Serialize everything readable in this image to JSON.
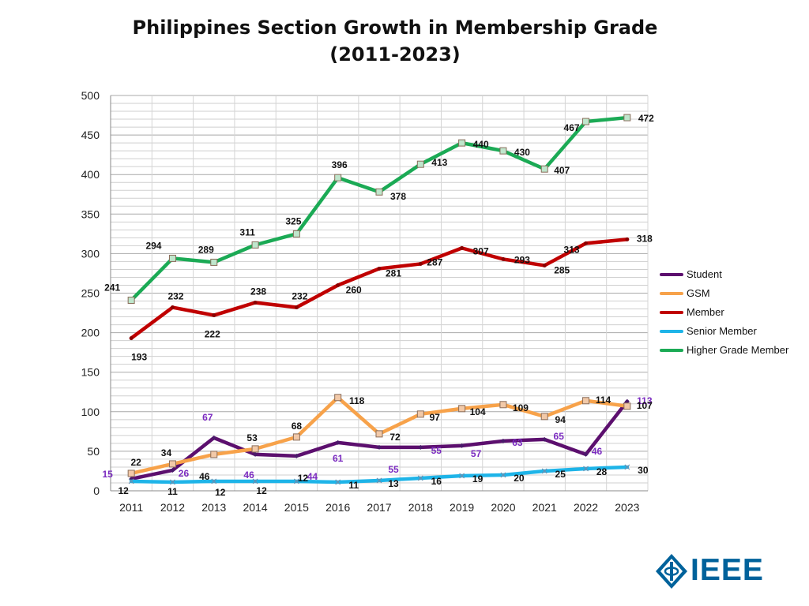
{
  "title_line1": "Philippines Section Growth in Membership Grade",
  "title_line2": "(2011-2023)",
  "logo_text": "IEEE",
  "colors": {
    "student": "#5C0F6E",
    "gsm": "#F7A24A",
    "member": "#C00000",
    "senior": "#1EB4E8",
    "higher": "#1BAA55",
    "student_label": "#7B2BC0",
    "brand": "#00629B"
  },
  "chart_data": {
    "type": "line",
    "title": "Philippines Section Growth in Membership Grade (2011-2023)",
    "xlabel": "",
    "ylabel": "",
    "ylim": [
      0,
      500
    ],
    "yticks": [
      0,
      50,
      100,
      150,
      200,
      250,
      300,
      350,
      400,
      450,
      500
    ],
    "grid": true,
    "legend_position": "right",
    "categories": [
      "2011",
      "2012",
      "2013",
      "2014",
      "2015",
      "2016",
      "2017",
      "2018",
      "2019",
      "2020",
      "2021",
      "2022",
      "2023"
    ],
    "series": [
      {
        "name": "Student",
        "values": [
          15,
          26,
          67,
          46,
          44,
          61,
          55,
          55,
          57,
          63,
          65,
          46,
          113
        ]
      },
      {
        "name": "GSM",
        "values": [
          22,
          34,
          46,
          53,
          68,
          118,
          72,
          97,
          104,
          109,
          94,
          114,
          107
        ]
      },
      {
        "name": "Member",
        "values": [
          193,
          232,
          222,
          238,
          232,
          260,
          281,
          287,
          307,
          293,
          285,
          313,
          318
        ]
      },
      {
        "name": "Senior Member",
        "values": [
          12,
          11,
          12,
          12,
          12,
          11,
          13,
          16,
          19,
          20,
          25,
          28,
          30
        ]
      },
      {
        "name": "Higher Grade Member",
        "values": [
          241,
          294,
          289,
          311,
          325,
          396,
          378,
          413,
          440,
          430,
          407,
          467,
          472
        ]
      }
    ]
  }
}
